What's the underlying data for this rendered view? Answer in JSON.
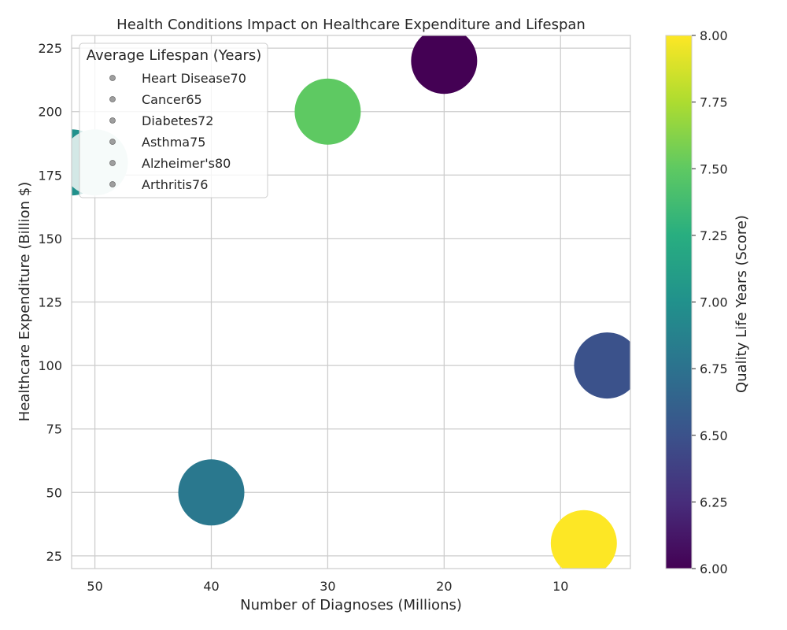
{
  "chart_data": {
    "type": "scatter",
    "title": "Health Conditions Impact on Healthcare Expenditure and Lifespan",
    "xlabel": "Number of Diagnoses (Millions)",
    "ylabel": "Healthcare Expenditure (Billion $)",
    "xlim": [
      52,
      4
    ],
    "ylim": [
      20,
      230
    ],
    "x_inverted": true,
    "xticks": [
      50,
      40,
      30,
      20,
      10
    ],
    "yticks": [
      25,
      50,
      75,
      100,
      125,
      150,
      175,
      200,
      225
    ],
    "grid": true,
    "points": [
      {
        "x": 20,
        "y": 220,
        "color_value": 6.0,
        "lifespan": 70
      },
      {
        "x": 6,
        "y": 100,
        "color_value": 6.5,
        "lifespan": 65
      },
      {
        "x": 40,
        "y": 50,
        "color_value": 6.8,
        "lifespan": 72
      },
      {
        "x": 8,
        "y": 30,
        "color_value": 8.0,
        "lifespan": 75
      },
      {
        "x": 52,
        "y": 180,
        "color_value": 7.0,
        "lifespan": 80
      },
      {
        "x": 30,
        "y": 200,
        "color_value": 7.5,
        "lifespan": 76
      },
      {
        "x": 50,
        "y": 180,
        "color_value": 7.0,
        "lifespan": 76,
        "light": true
      }
    ],
    "legend": {
      "title": "Average Lifespan (Years)",
      "placement": "top-left",
      "entries": [
        "Heart Disease70",
        "Cancer65",
        "Diabetes72",
        "Asthma75",
        "Alzheimer's80",
        "Arthritis76"
      ]
    },
    "colorbar": {
      "label": "Quality Life Years (Score)",
      "min": 6.0,
      "max": 8.0,
      "ticks": [
        "6.00",
        "6.25",
        "6.50",
        "6.75",
        "7.00",
        "7.25",
        "7.50",
        "7.75",
        "8.00"
      ],
      "colormap": "viridis"
    }
  }
}
